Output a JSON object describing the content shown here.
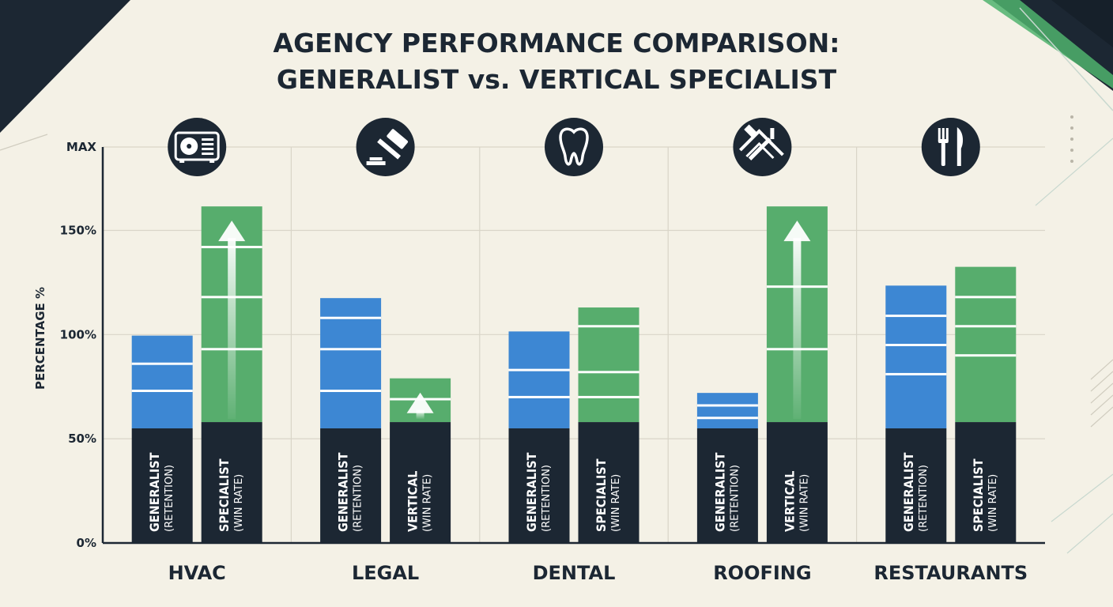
{
  "colors": {
    "background": "#f4f1e6",
    "generalist": "#3d87d3",
    "specialist": "#57ad6d",
    "base": "#1c2733",
    "grid": "#d9d5c8",
    "accent_corner": "#1c2733",
    "accent_green": "#4fb36d"
  },
  "chart_data": {
    "type": "bar",
    "title": [
      "AGENCY PERFORMANCE COMPARISON:",
      "GENERALIST vs. VERTICAL SPECIALIST"
    ],
    "ylabel": "PERCENTAGE %",
    "y_tick_labels": [
      {
        "value": 0,
        "label": "0%"
      },
      {
        "value": 50,
        "label": "50%"
      },
      {
        "value": 100,
        "label": "100%"
      },
      {
        "value": 150,
        "label": "150%"
      },
      {
        "value": 190,
        "label": "MAX"
      }
    ],
    "ylim": [
      0,
      190
    ],
    "grid": true,
    "categories": [
      "HVAC",
      "LEGAL",
      "DENTAL",
      "ROOFING",
      "RESTAURANTS"
    ],
    "category_icons": [
      "ac-unit-icon",
      "gavel-icon",
      "tooth-icon",
      "roof-hammer-icon",
      "fork-knife-icon"
    ],
    "series": [
      {
        "key": "generalist",
        "values": [
          99.5,
          117.5,
          101.5,
          72,
          123.5
        ],
        "base_value": 55,
        "stripes": [
          [
            86,
            73
          ],
          [
            108,
            93,
            73
          ],
          [
            83,
            70
          ],
          [
            66,
            60
          ],
          [
            109,
            95,
            81
          ]
        ],
        "labels": [
          {
            "main": "GENERALIST",
            "sub": "(RETENTION)"
          },
          {
            "main": "GENERALIST",
            "sub": "(RETENTION)"
          },
          {
            "main": "GENERALIST",
            "sub": "(RETENTION)"
          },
          {
            "main": "GENERALIST",
            "sub": "(RETENTION)"
          },
          {
            "main": "GENERALIST",
            "sub": "(RETENTION)"
          }
        ],
        "arrows": [
          false,
          false,
          false,
          false,
          false
        ]
      },
      {
        "key": "specialist",
        "values": [
          161.5,
          79,
          113,
          161.5,
          132.5
        ],
        "base_value": 58,
        "stripes": [
          [
            142,
            118,
            93
          ],
          [
            69
          ],
          [
            104,
            82,
            70
          ],
          [
            123,
            93
          ],
          [
            118,
            104,
            90
          ]
        ],
        "labels": [
          {
            "main": "SPECIALIST",
            "sub": "(WIN RATE)"
          },
          {
            "main": "VERTICAL",
            "sub": "(WIN RATE)"
          },
          {
            "main": "SPECIALIST",
            "sub": "(WIN RATE)"
          },
          {
            "main": "VERTICAL",
            "sub": "(WIN RATE)"
          },
          {
            "main": "SPECIALIST",
            "sub": "(WIN RATE)"
          }
        ],
        "arrows": [
          true,
          true,
          false,
          true,
          false
        ]
      }
    ]
  }
}
